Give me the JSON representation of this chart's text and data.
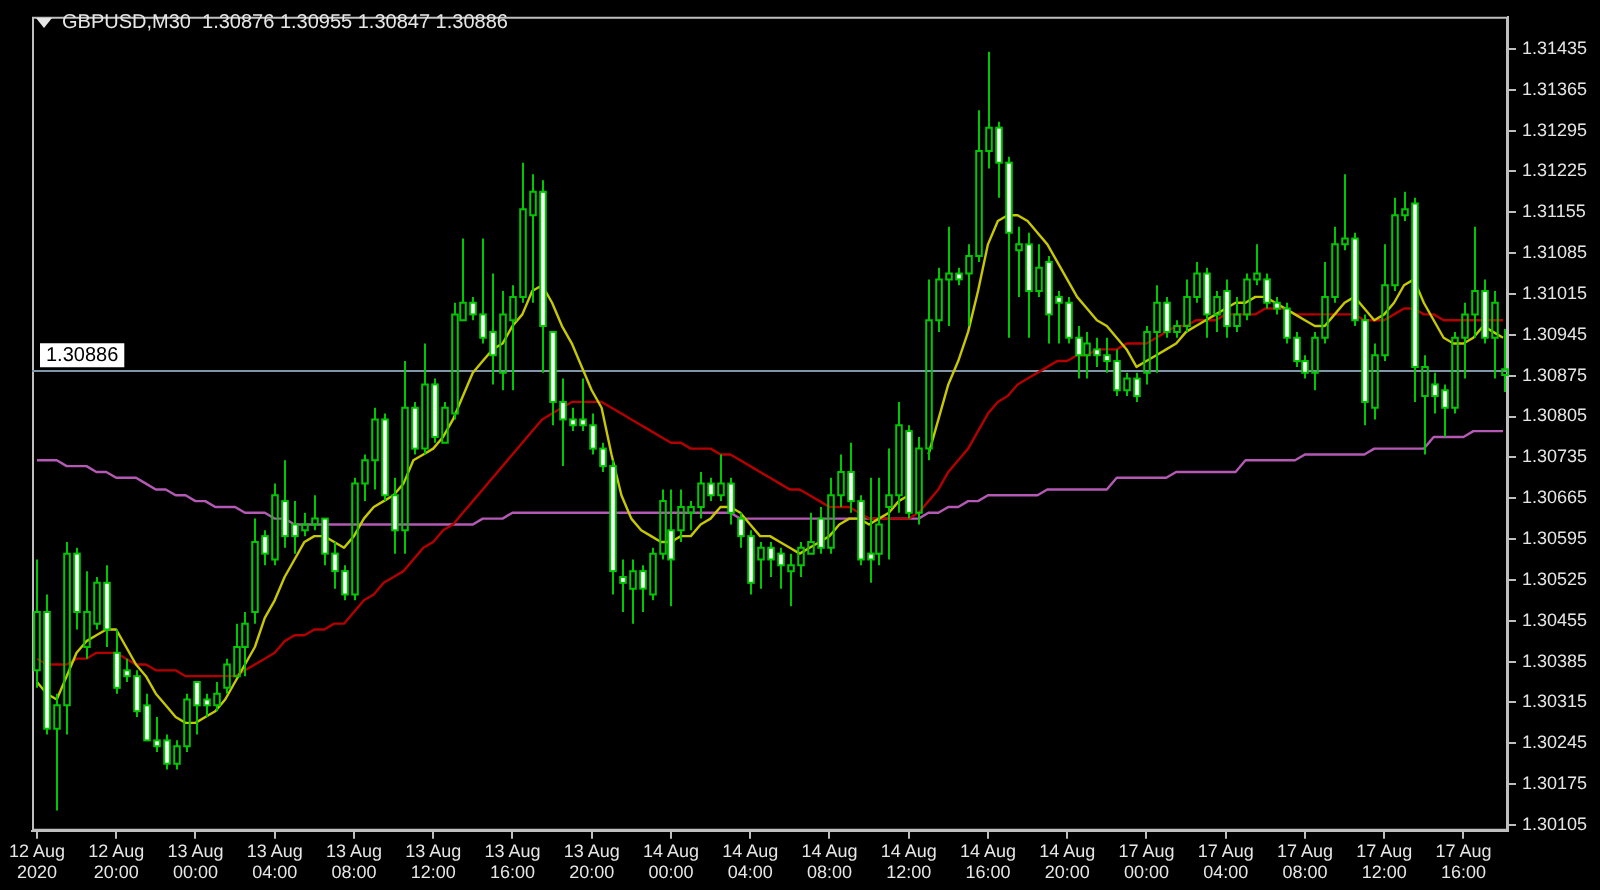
{
  "chart_data": {
    "type": "candlestick",
    "title": "GBPUSD,M30  1.30876 1.30955 1.30847 1.30886",
    "color": "#00c800",
    "categories": [
      "12 Aug 2020",
      null,
      null,
      null,
      null,
      null,
      null,
      null,
      "12 Aug 20:00",
      null,
      null,
      null,
      null,
      null,
      null,
      null,
      "13 Aug 00:00",
      null,
      null,
      null,
      null,
      null,
      null,
      null,
      "13 Aug 04:00",
      null,
      null,
      null,
      null,
      null,
      null,
      null,
      "13 Aug 08:00",
      null,
      null,
      null,
      null,
      null,
      null,
      null,
      "13 Aug 12:00",
      null,
      null,
      null,
      null,
      null,
      null,
      null,
      "13 Aug 16:00",
      null,
      null,
      null,
      null,
      null,
      null,
      null,
      "13 Aug 20:00",
      null,
      null,
      null,
      null,
      null,
      null,
      null,
      "14 Aug 00:00",
      null,
      null,
      null,
      null,
      null,
      null,
      null,
      "14 Aug 04:00",
      null,
      null,
      null,
      null,
      null,
      null,
      null,
      "14 Aug 08:00",
      null,
      null,
      null,
      null,
      null,
      null,
      null,
      "14 Aug 12:00",
      null,
      null,
      null,
      null,
      null,
      null,
      null,
      "14 Aug 16:00",
      null,
      null,
      null,
      null,
      null,
      null,
      null,
      "14 Aug 20:00",
      null,
      null,
      null,
      null,
      null,
      null,
      null,
      "17 Aug 00:00",
      null,
      null,
      null,
      null,
      null,
      null,
      null,
      "17 Aug 04:00",
      null,
      null,
      null,
      null,
      null,
      null,
      null,
      "17 Aug 08:00",
      null,
      null,
      null,
      null,
      null,
      null,
      null,
      "17 Aug 12:00",
      null,
      null,
      null,
      null,
      null,
      null,
      null,
      "17 Aug 16:00",
      null,
      null,
      null,
      null
    ],
    "ohlc": [
      [
        1.3037,
        1.3056,
        1.3034,
        1.3047
      ],
      [
        1.3047,
        1.305,
        1.3026,
        1.3027
      ],
      [
        1.3027,
        1.3033,
        1.3013,
        1.3031
      ],
      [
        1.3031,
        1.3059,
        1.3026,
        1.3057
      ],
      [
        1.3057,
        1.3058,
        1.3044,
        1.3047
      ],
      [
        1.3041,
        1.3054,
        1.3039,
        1.3047
      ],
      [
        1.3045,
        1.3053,
        1.3044,
        1.3052
      ],
      [
        1.3052,
        1.3055,
        1.3041,
        1.3044
      ],
      [
        1.304,
        1.3044,
        1.3033,
        1.3034
      ],
      [
        1.3037,
        1.3039,
        1.3035,
        1.3036
      ],
      [
        1.3036,
        1.3037,
        1.3029,
        1.303
      ],
      [
        1.3031,
        1.3033,
        1.3025,
        1.3025
      ],
      [
        1.3025,
        1.3029,
        1.3023,
        1.3024
      ],
      [
        1.3025,
        1.3026,
        1.302,
        1.3021
      ],
      [
        1.3021,
        1.3025,
        1.302,
        1.3024
      ],
      [
        1.3024,
        1.3033,
        1.3023,
        1.3032
      ],
      [
        1.3035,
        1.3035,
        1.3026,
        1.3031
      ],
      [
        1.3032,
        1.3033,
        1.3029,
        1.3031
      ],
      [
        1.3031,
        1.3035,
        1.303,
        1.3033
      ],
      [
        1.3034,
        1.3039,
        1.3033,
        1.3038
      ],
      [
        1.3036,
        1.3045,
        1.3036,
        1.3041
      ],
      [
        1.3041,
        1.3047,
        1.3036,
        1.3045
      ],
      [
        1.3047,
        1.3063,
        1.3045,
        1.3059
      ],
      [
        1.306,
        1.3061,
        1.3055,
        1.3057
      ],
      [
        1.3056,
        1.3069,
        1.3055,
        1.3067
      ],
      [
        1.3066,
        1.3073,
        1.3058,
        1.306
      ],
      [
        1.3062,
        1.3066,
        1.3057,
        1.306
      ],
      [
        1.3061,
        1.3064,
        1.306,
        1.3062
      ],
      [
        1.3062,
        1.3067,
        1.3061,
        1.3063
      ],
      [
        1.3063,
        1.3063,
        1.3055,
        1.3057
      ],
      [
        1.3057,
        1.3059,
        1.3051,
        1.3054
      ],
      [
        1.3054,
        1.3055,
        1.3049,
        1.305
      ],
      [
        1.305,
        1.307,
        1.3049,
        1.3069
      ],
      [
        1.3069,
        1.3074,
        1.3066,
        1.3073
      ],
      [
        1.3073,
        1.3082,
        1.3068,
        1.308
      ],
      [
        1.308,
        1.3081,
        1.3066,
        1.3067
      ],
      [
        1.3067,
        1.307,
        1.3057,
        1.3061
      ],
      [
        1.3061,
        1.309,
        1.3057,
        1.3082
      ],
      [
        1.3082,
        1.3083,
        1.3074,
        1.3075
      ],
      [
        1.3075,
        1.3093,
        1.3074,
        1.3086
      ],
      [
        1.3086,
        1.3087,
        1.3076,
        1.3077
      ],
      [
        1.3076,
        1.3083,
        1.3076,
        1.3082
      ],
      [
        1.3081,
        1.31,
        1.308,
        1.3098
      ],
      [
        1.3097,
        1.3111,
        1.3097,
        1.31
      ],
      [
        1.31,
        1.3101,
        1.3097,
        1.3098
      ],
      [
        1.3098,
        1.3111,
        1.3093,
        1.3094
      ],
      [
        1.3095,
        1.3105,
        1.3086,
        1.3091
      ],
      [
        1.3088,
        1.3102,
        1.3085,
        1.3098
      ],
      [
        1.3097,
        1.3103,
        1.3085,
        1.3101
      ],
      [
        1.3101,
        1.3124,
        1.31,
        1.3116
      ],
      [
        1.3115,
        1.3122,
        1.31,
        1.3119
      ],
      [
        1.3119,
        1.3121,
        1.3088,
        1.3096
      ],
      [
        1.3095,
        1.3095,
        1.3079,
        1.3083
      ],
      [
        1.3083,
        1.3087,
        1.3072,
        1.308
      ],
      [
        1.308,
        1.3082,
        1.3078,
        1.3079
      ],
      [
        1.308,
        1.3087,
        1.3078,
        1.3079
      ],
      [
        1.3079,
        1.3081,
        1.3074,
        1.3075
      ],
      [
        1.3075,
        1.3076,
        1.3071,
        1.3072
      ],
      [
        1.3072,
        1.3073,
        1.305,
        1.3054
      ],
      [
        1.3053,
        1.3056,
        1.3047,
        1.3052
      ],
      [
        1.3051,
        1.3056,
        1.3045,
        1.3054
      ],
      [
        1.3054,
        1.3055,
        1.3047,
        1.3051
      ],
      [
        1.305,
        1.3058,
        1.3049,
        1.3057
      ],
      [
        1.3057,
        1.3068,
        1.3056,
        1.3066
      ],
      [
        1.3061,
        1.3068,
        1.3048,
        1.3056
      ],
      [
        1.3061,
        1.3068,
        1.3059,
        1.3065
      ],
      [
        1.3064,
        1.3066,
        1.3061,
        1.3065
      ],
      [
        1.3065,
        1.3071,
        1.3063,
        1.3069
      ],
      [
        1.3069,
        1.307,
        1.3066,
        1.3067
      ],
      [
        1.3067,
        1.3074,
        1.3066,
        1.3069
      ],
      [
        1.3069,
        1.307,
        1.3062,
        1.3064
      ],
      [
        1.3063,
        1.3064,
        1.3058,
        1.306
      ],
      [
        1.306,
        1.3061,
        1.305,
        1.3052
      ],
      [
        1.3056,
        1.3059,
        1.3051,
        1.3058
      ],
      [
        1.3058,
        1.3059,
        1.3053,
        1.3056
      ],
      [
        1.3057,
        1.3058,
        1.3051,
        1.3055
      ],
      [
        1.3054,
        1.3057,
        1.3048,
        1.3055
      ],
      [
        1.3055,
        1.3059,
        1.3053,
        1.3058
      ],
      [
        1.3057,
        1.3064,
        1.3057,
        1.3059
      ],
      [
        1.3063,
        1.3065,
        1.3057,
        1.3058
      ],
      [
        1.3058,
        1.307,
        1.3057,
        1.3067
      ],
      [
        1.3067,
        1.3074,
        1.3065,
        1.3071
      ],
      [
        1.3071,
        1.3076,
        1.3064,
        1.3066
      ],
      [
        1.3066,
        1.3067,
        1.3055,
        1.3056
      ],
      [
        1.3057,
        1.307,
        1.3052,
        1.3056
      ],
      [
        1.3057,
        1.307,
        1.3055,
        1.3062
      ],
      [
        1.3065,
        1.3075,
        1.3056,
        1.3067
      ],
      [
        1.3067,
        1.3083,
        1.3064,
        1.3079
      ],
      [
        1.3078,
        1.3079,
        1.3063,
        1.3064
      ],
      [
        1.3064,
        1.3077,
        1.3062,
        1.3075
      ],
      [
        1.3075,
        1.3104,
        1.3073,
        1.3097
      ],
      [
        1.3097,
        1.3106,
        1.3095,
        1.3104
      ],
      [
        1.3104,
        1.3113,
        1.3096,
        1.3105
      ],
      [
        1.3105,
        1.3106,
        1.3103,
        1.3104
      ],
      [
        1.3105,
        1.311,
        1.3096,
        1.3108
      ],
      [
        1.3108,
        1.3133,
        1.3107,
        1.3126
      ],
      [
        1.3126,
        1.3143,
        1.3123,
        1.313
      ],
      [
        1.313,
        1.3131,
        1.3118,
        1.3124
      ],
      [
        1.3124,
        1.3125,
        1.3094,
        1.3112
      ],
      [
        1.3109,
        1.3113,
        1.3101,
        1.311
      ],
      [
        1.311,
        1.3112,
        1.3094,
        1.3102
      ],
      [
        1.3102,
        1.311,
        1.3101,
        1.3106
      ],
      [
        1.3107,
        1.3108,
        1.3093,
        1.3098
      ],
      [
        1.3101,
        1.3102,
        1.3093,
        1.31
      ],
      [
        1.31,
        1.3101,
        1.3093,
        1.3094
      ],
      [
        1.3094,
        1.3096,
        1.3087,
        1.3091
      ],
      [
        1.3091,
        1.3095,
        1.3087,
        1.3093
      ],
      [
        1.3092,
        1.3094,
        1.3089,
        1.3091
      ],
      [
        1.3091,
        1.3094,
        1.3088,
        1.309
      ],
      [
        1.309,
        1.3092,
        1.3084,
        1.3085
      ],
      [
        1.3085,
        1.3088,
        1.3084,
        1.3087
      ],
      [
        1.3087,
        1.3088,
        1.3083,
        1.3084
      ],
      [
        1.3088,
        1.3096,
        1.3086,
        1.3095
      ],
      [
        1.3095,
        1.3103,
        1.3088,
        1.31
      ],
      [
        1.31,
        1.3101,
        1.3094,
        1.3095
      ],
      [
        1.3095,
        1.3097,
        1.3094,
        1.3096
      ],
      [
        1.3096,
        1.3104,
        1.3095,
        1.3101
      ],
      [
        1.3101,
        1.3107,
        1.31,
        1.3105
      ],
      [
        1.3105,
        1.3106,
        1.3094,
        1.3098
      ],
      [
        1.3098,
        1.3102,
        1.3095,
        1.3101
      ],
      [
        1.3102,
        1.3104,
        1.3094,
        1.3096
      ],
      [
        1.3096,
        1.3101,
        1.3095,
        1.3098
      ],
      [
        1.3098,
        1.3105,
        1.3097,
        1.3104
      ],
      [
        1.3104,
        1.311,
        1.3103,
        1.3105
      ],
      [
        1.3104,
        1.3105,
        1.3099,
        1.31
      ],
      [
        1.31,
        1.3101,
        1.3098,
        1.3099
      ],
      [
        1.3099,
        1.31,
        1.3093,
        1.3094
      ],
      [
        1.3094,
        1.3095,
        1.3089,
        1.309
      ],
      [
        1.309,
        1.3091,
        1.3087,
        1.3088
      ],
      [
        1.3088,
        1.3095,
        1.3085,
        1.3094
      ],
      [
        1.3094,
        1.3107,
        1.3093,
        1.3101
      ],
      [
        1.3101,
        1.3113,
        1.31,
        1.311
      ],
      [
        1.311,
        1.3122,
        1.3109,
        1.3111
      ],
      [
        1.3111,
        1.3112,
        1.3096,
        1.3097
      ],
      [
        1.3097,
        1.3098,
        1.3079,
        1.3083
      ],
      [
        1.3082,
        1.3093,
        1.308,
        1.3091
      ],
      [
        1.3091,
        1.311,
        1.309,
        1.3103
      ],
      [
        1.3103,
        1.3118,
        1.3102,
        1.3115
      ],
      [
        1.3115,
        1.3119,
        1.3114,
        1.3116
      ],
      [
        1.3117,
        1.3118,
        1.3083,
        1.3089
      ],
      [
        1.3084,
        1.3091,
        1.3074,
        1.3089
      ],
      [
        1.3086,
        1.3088,
        1.3081,
        1.3084
      ],
      [
        1.3085,
        1.3086,
        1.3077,
        1.3082
      ],
      [
        1.3082,
        1.3095,
        1.3081,
        1.3094
      ],
      [
        1.3094,
        1.31,
        1.3087,
        1.3098
      ],
      [
        1.3098,
        1.3113,
        1.3094,
        1.3102
      ],
      [
        1.3102,
        1.3104,
        1.3093,
        1.3094
      ],
      [
        1.3094,
        1.3102,
        1.3087,
        1.31
      ],
      [
        1.30876,
        1.30955,
        1.30847,
        1.30886
      ]
    ],
    "series": [
      {
        "type": "line",
        "color": "#c8c800",
        "values": [
          1.3035,
          1.3033,
          1.3032,
          1.3036,
          1.304,
          1.3042,
          1.3043,
          1.3044,
          1.3044,
          1.3041,
          1.3038,
          1.3036,
          1.3033,
          1.3031,
          1.3029,
          1.3028,
          1.3028,
          1.3029,
          1.303,
          1.3032,
          1.3035,
          1.3038,
          1.3041,
          1.3046,
          1.3049,
          1.3053,
          1.3056,
          1.3059,
          1.306,
          1.306,
          1.3059,
          1.3058,
          1.306,
          1.3063,
          1.3065,
          1.3066,
          1.3067,
          1.3069,
          1.3073,
          1.3074,
          1.3075,
          1.3077,
          1.308,
          1.3084,
          1.3088,
          1.309,
          1.3092,
          1.3093,
          1.3096,
          1.3098,
          1.3102,
          1.3103,
          1.31,
          1.3096,
          1.3093,
          1.3089,
          1.3085,
          1.3082,
          1.3074,
          1.3067,
          1.3063,
          1.3061,
          1.306,
          1.3059,
          1.3059,
          1.306,
          1.306,
          1.3062,
          1.3063,
          1.3065,
          1.3065,
          1.3064,
          1.3062,
          1.306,
          1.306,
          1.3059,
          1.3058,
          1.3057,
          1.3058,
          1.3059,
          1.306,
          1.3062,
          1.3063,
          1.3063,
          1.3062,
          1.3063,
          1.3064,
          1.3066,
          1.3067,
          null,
          1.3074,
          1.308,
          1.3086,
          1.309,
          1.3095,
          1.3102,
          1.311,
          1.3114,
          1.3115,
          1.3115,
          1.3114,
          1.3112,
          1.311,
          1.3107,
          1.3104,
          1.3101,
          1.3099,
          1.3097,
          1.3096,
          1.3094,
          1.3092,
          1.3089,
          1.309,
          1.3091,
          1.3092,
          1.3093,
          1.3095,
          1.3096,
          1.3097,
          1.3098,
          1.3099,
          1.31,
          1.31,
          1.3101,
          1.3101,
          1.31,
          1.3099,
          1.3098,
          1.3097,
          1.3096,
          1.3096,
          1.3098,
          1.31,
          1.3101,
          1.3099,
          1.3097,
          1.3098,
          1.31,
          1.3103,
          1.3104,
          1.31,
          1.3097,
          1.3094,
          1.3093,
          1.3093,
          1.3094,
          1.3096,
          1.3095,
          1.3094
        ]
      },
      {
        "type": "line",
        "color": "#b40000",
        "values": [
          1.3039,
          1.3038,
          1.3038,
          1.3038,
          1.3039,
          1.3039,
          1.304,
          1.304,
          1.304,
          1.3039,
          1.3038,
          1.3038,
          1.3037,
          1.3037,
          1.3037,
          1.3036,
          1.3036,
          1.3036,
          1.3036,
          1.3036,
          1.3036,
          1.3037,
          1.3038,
          1.3039,
          1.304,
          1.3042,
          1.3043,
          1.3043,
          1.3044,
          1.3044,
          1.3045,
          1.3045,
          1.3047,
          1.3049,
          1.305,
          1.3052,
          1.3053,
          1.3054,
          1.3056,
          1.3058,
          1.3059,
          1.3061,
          1.3062,
          1.3064,
          1.3066,
          1.3068,
          1.307,
          1.3072,
          1.3074,
          1.3076,
          1.3078,
          1.308,
          1.3081,
          1.3082,
          1.3083,
          1.3083,
          1.3083,
          1.3083,
          1.3082,
          1.3081,
          1.308,
          1.3079,
          1.3078,
          1.3077,
          1.3076,
          1.3076,
          1.3075,
          1.3075,
          1.3075,
          1.3074,
          1.3074,
          1.3073,
          1.3072,
          1.3071,
          1.307,
          1.3069,
          1.3068,
          1.3068,
          1.3067,
          1.3066,
          1.3065,
          1.3065,
          1.3065,
          1.3064,
          1.3063,
          1.3063,
          1.3063,
          1.3063,
          1.3063,
          1.3064,
          1.3066,
          1.3068,
          1.3071,
          1.3073,
          1.3075,
          1.3078,
          1.3081,
          1.3083,
          1.3084,
          1.3086,
          1.3087,
          1.3088,
          1.3089,
          1.309,
          1.309,
          1.3091,
          1.3091,
          1.3092,
          1.3092,
          1.3092,
          1.3093,
          1.3093,
          1.3093,
          1.3094,
          1.3095,
          1.3096,
          1.3096,
          1.3097,
          1.3097,
          1.3097,
          1.3098,
          1.3098,
          1.3098,
          1.3098,
          1.3099,
          1.3099,
          1.3099,
          1.3098,
          1.3098,
          1.3098,
          1.3098,
          1.3098,
          1.3098,
          1.3098,
          1.3097,
          1.3097,
          1.3097,
          1.3098,
          1.3099,
          1.3099,
          1.3098,
          1.3098,
          1.3097,
          1.3097,
          1.3097,
          1.3097,
          1.3097,
          1.3097,
          1.3097
        ]
      },
      {
        "type": "line",
        "color": "#b45ab4",
        "values": [
          1.3073,
          1.3073,
          1.3073,
          1.3072,
          1.3072,
          1.3072,
          1.3071,
          1.3071,
          1.307,
          1.307,
          1.307,
          1.3069,
          1.3068,
          1.3068,
          1.3067,
          1.3067,
          1.3066,
          1.3066,
          1.3065,
          1.3065,
          1.3065,
          1.3064,
          1.3064,
          1.3064,
          1.3063,
          1.3063,
          1.3062,
          1.3062,
          1.3062,
          1.3062,
          1.3062,
          1.3062,
          1.3062,
          1.3062,
          1.3062,
          1.3062,
          1.3062,
          1.3062,
          1.3062,
          1.3062,
          1.3062,
          1.3062,
          1.3062,
          1.3062,
          1.3062,
          1.3063,
          1.3063,
          1.3063,
          1.3064,
          1.3064,
          1.3064,
          1.3064,
          1.3064,
          1.3064,
          1.3064,
          1.3064,
          1.3064,
          1.3064,
          1.3064,
          1.3064,
          1.3064,
          1.3064,
          1.3064,
          1.3064,
          1.3064,
          1.3064,
          1.3064,
          1.3064,
          1.3064,
          1.3064,
          1.3064,
          1.3063,
          1.3063,
          1.3063,
          1.3063,
          1.3063,
          1.3063,
          1.3063,
          1.3063,
          1.3063,
          1.3063,
          1.3063,
          1.3063,
          1.3063,
          1.3063,
          1.3063,
          1.3063,
          1.3063,
          1.3063,
          1.3063,
          1.3064,
          1.3064,
          1.3065,
          1.3065,
          1.3066,
          1.3066,
          1.3067,
          1.3067,
          1.3067,
          1.3067,
          1.3067,
          1.3067,
          1.3068,
          1.3068,
          1.3068,
          1.3068,
          1.3068,
          1.3068,
          1.3068,
          1.307,
          1.307,
          1.307,
          1.307,
          1.307,
          1.307,
          1.3071,
          1.3071,
          1.3071,
          1.3071,
          1.3071,
          1.3071,
          1.3071,
          1.3073,
          1.3073,
          1.3073,
          1.3073,
          1.3073,
          1.3073,
          1.3074,
          1.3074,
          1.3074,
          1.3074,
          1.3074,
          1.3074,
          1.3074,
          1.3075,
          1.3075,
          1.3075,
          1.3075,
          1.3075,
          1.3075,
          1.3077,
          1.3077,
          1.3077,
          1.3077,
          1.3078,
          1.3078,
          1.3078,
          1.3078
        ]
      }
    ],
    "ylim": [
      1.30095,
      1.3149
    ],
    "yticks": [
      1.30105,
      1.30175,
      1.30245,
      1.30315,
      1.30385,
      1.30455,
      1.30525,
      1.30595,
      1.30665,
      1.30735,
      1.30805,
      1.30875,
      1.30945,
      1.31015,
      1.31085,
      1.31155,
      1.31225,
      1.31295,
      1.31365,
      1.31435
    ],
    "ref_lines": [
      {
        "axis": "y",
        "value": 1.30886,
        "label": "1.30886",
        "color": "#8296aa"
      }
    ],
    "legend": false,
    "marker": "none"
  }
}
